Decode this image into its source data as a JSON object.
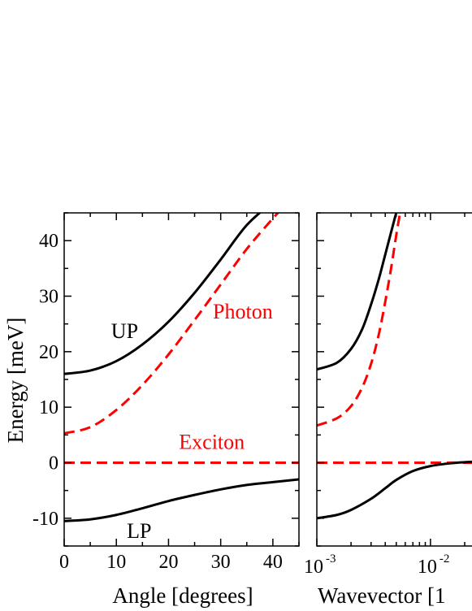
{
  "chart_data": [
    {
      "type": "line",
      "xlabel": "Angle [degrees]",
      "ylabel": "Energy [meV]",
      "xlim": [
        0,
        45
      ],
      "ylim": [
        -15,
        45
      ],
      "x_ticks": [
        "0",
        "10",
        "20",
        "30",
        "40"
      ],
      "y_ticks": [
        "-10",
        "0",
        "10",
        "20",
        "30",
        "40"
      ],
      "grid": false,
      "series": [
        {
          "name": "UP",
          "color": "#000000",
          "style": "solid",
          "x": [
            0,
            5,
            10,
            15,
            20,
            25,
            30,
            35,
            40
          ],
          "y": [
            16.0,
            16.6,
            18.3,
            21.3,
            25.4,
            30.6,
            36.6,
            42.8,
            47.0
          ]
        },
        {
          "name": "Photon",
          "color": "#ff0000",
          "style": "dashed",
          "x": [
            0,
            5,
            10,
            15,
            20,
            25,
            30,
            35,
            40,
            42
          ],
          "y": [
            5.3,
            6.4,
            9.5,
            14.0,
            19.5,
            25.7,
            32.1,
            38.5,
            44.0,
            46.0
          ]
        },
        {
          "name": "Exciton",
          "color": "#ff0000",
          "style": "dashed",
          "x": [
            0,
            45
          ],
          "y": [
            0,
            0
          ]
        },
        {
          "name": "LP",
          "color": "#000000",
          "style": "solid",
          "x": [
            0,
            5,
            10,
            15,
            20,
            25,
            30,
            35,
            40,
            45
          ],
          "y": [
            -10.5,
            -10.2,
            -9.4,
            -8.2,
            -6.9,
            -5.8,
            -4.8,
            -4.0,
            -3.5,
            -3.0
          ]
        }
      ],
      "annotations": [
        {
          "text": "UP",
          "color": "#000000",
          "x": 9,
          "y": 22.5
        },
        {
          "text": "Photon",
          "color": "#ff0000",
          "x": 28.5,
          "y": 26
        },
        {
          "text": "Exciton",
          "color": "#ff0000",
          "x": 22,
          "y": 2.5
        },
        {
          "text": "LP",
          "color": "#000000",
          "x": 12,
          "y": -13.5
        }
      ]
    },
    {
      "type": "line",
      "xlabel": "Wavevector [1",
      "ylabel": "",
      "xscale": "log",
      "xlim": [
        0.001,
        0.035
      ],
      "ylim": [
        -15,
        45
      ],
      "x_ticks": [
        {
          "base": "10",
          "exponent": "-3",
          "value": 0.001
        },
        {
          "base": "10",
          "exponent": "-2",
          "value": 0.01
        }
      ],
      "grid": false,
      "series": [
        {
          "name": "",
          "color": "#000000",
          "style": "solid",
          "x": [
            0.001,
            0.0015,
            0.002,
            0.0025,
            0.003,
            0.0035,
            0.004,
            0.0045,
            0.005,
            0.0053
          ],
          "y": [
            16.8,
            18.0,
            20.5,
            24.0,
            28.5,
            33.0,
            37.5,
            41.5,
            45.0,
            46.5
          ]
        },
        {
          "name": "",
          "color": "#ff0000",
          "style": "dashed",
          "x": [
            0.001,
            0.0015,
            0.002,
            0.0025,
            0.003,
            0.0035,
            0.004,
            0.0045,
            0.005,
            0.0055
          ],
          "y": [
            6.7,
            8.0,
            10.2,
            13.5,
            17.8,
            23.0,
            29.0,
            35.0,
            41.0,
            46.0
          ]
        },
        {
          "name": "",
          "color": "#ff0000",
          "style": "dashed",
          "x": [
            0.001,
            0.035
          ],
          "y": [
            0,
            0
          ]
        },
        {
          "name": "",
          "color": "#000000",
          "style": "solid",
          "x": [
            0.001,
            0.0015,
            0.002,
            0.003,
            0.004,
            0.005,
            0.007,
            0.01,
            0.015,
            0.02,
            0.035
          ],
          "y": [
            -10.0,
            -9.4,
            -8.5,
            -6.5,
            -4.6,
            -3.1,
            -1.5,
            -0.6,
            -0.1,
            0.1,
            0.3
          ]
        }
      ]
    }
  ]
}
